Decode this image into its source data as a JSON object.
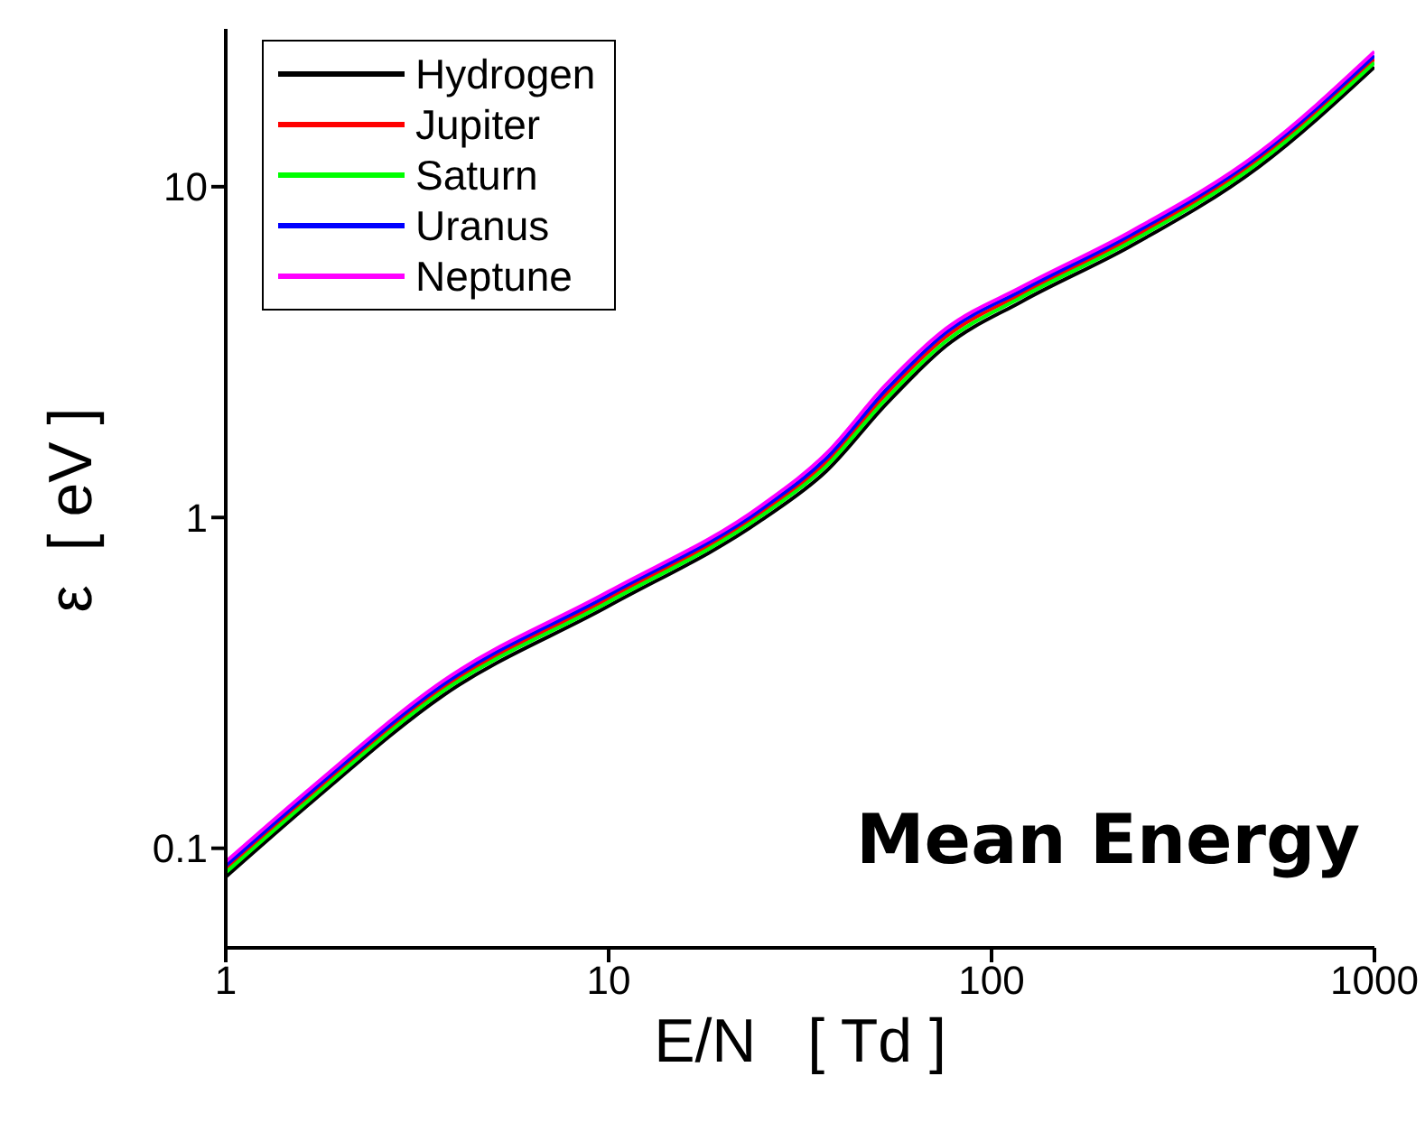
{
  "chart_data": {
    "type": "line",
    "xlabel": "E/N   [ Td ]",
    "ylabel": "ε  [ eV ]",
    "log": "xy",
    "grid": false,
    "legend": "top left",
    "marker": "none",
    "line_style": "solid",
    "xlim": [
      1,
      1000
    ],
    "xticks": [
      1,
      10,
      100,
      1000
    ],
    "ylim": [
      0.05,
      30
    ],
    "yticks": [
      0.1,
      1,
      10
    ],
    "annotations": [
      "Mean Energy"
    ],
    "x": [
      1,
      1.7,
      3.7,
      10,
      25,
      37,
      53,
      76,
      120,
      230,
      500,
      1000
    ],
    "series": [
      {
        "name": "Hydrogen",
        "color": "#000000",
        "values": [
          0.082,
          0.14,
          0.29,
          0.54,
          0.98,
          1.38,
          2.2,
          3.3,
          4.5,
          6.6,
          11.5,
          23
        ]
      },
      {
        "name": "Jupiter",
        "color": "#ff0000",
        "values": [
          0.0865,
          0.148,
          0.306,
          0.57,
          1.034,
          1.47,
          2.36,
          3.52,
          4.75,
          6.96,
          12.13,
          24.3
        ]
      },
      {
        "name": "Saturn",
        "color": "#00ff00",
        "values": [
          0.0845,
          0.144,
          0.299,
          0.556,
          1.01,
          1.43,
          2.28,
          3.41,
          4.64,
          6.8,
          11.85,
          23.7
        ]
      },
      {
        "name": "Uranus",
        "color": "#0000ff",
        "values": [
          0.0886,
          0.151,
          0.313,
          0.583,
          1.058,
          1.51,
          2.43,
          3.62,
          4.86,
          7.13,
          12.42,
          24.9
        ]
      },
      {
        "name": "Neptune",
        "color": "#ff00ff",
        "values": [
          0.091,
          0.155,
          0.321,
          0.597,
          1.085,
          1.56,
          2.52,
          3.72,
          4.98,
          7.3,
          12.7,
          25.6
        ]
      }
    ]
  }
}
